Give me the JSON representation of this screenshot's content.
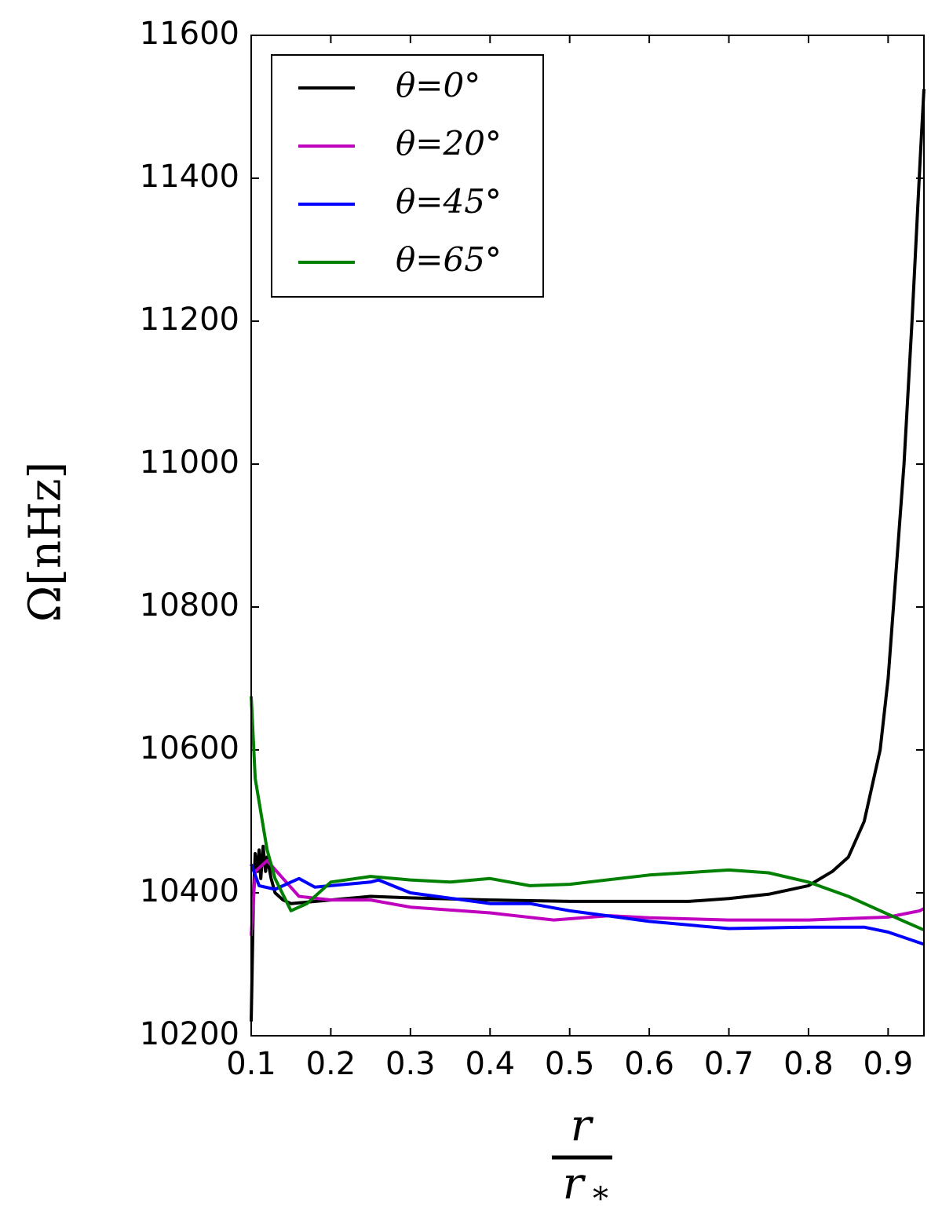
{
  "chart_data": {
    "type": "line",
    "ylabel": "Ω[nHz]",
    "xlabel_numerator": "r",
    "xlabel_denominator": "r",
    "xlabel_denominator_subscript": "*",
    "xlim": [
      0.1,
      0.945
    ],
    "ylim": [
      10200,
      11600
    ],
    "xticks": [
      0.1,
      0.2,
      0.3,
      0.4,
      0.5,
      0.6,
      0.7,
      0.8,
      0.9
    ],
    "yticks": [
      10200,
      10400,
      10600,
      10800,
      11000,
      11200,
      11400,
      11600
    ],
    "grid": false,
    "legend": "upper left",
    "series": [
      {
        "name": "θ=0°",
        "color": "#000000",
        "x": [
          0.1,
          0.103,
          0.105,
          0.108,
          0.11,
          0.112,
          0.115,
          0.118,
          0.12,
          0.125,
          0.13,
          0.14,
          0.15,
          0.2,
          0.25,
          0.3,
          0.4,
          0.5,
          0.65,
          0.7,
          0.75,
          0.8,
          0.83,
          0.85,
          0.87,
          0.89,
          0.9,
          0.91,
          0.92,
          0.93,
          0.94,
          0.945
        ],
        "values": [
          10220,
          10400,
          10455,
          10430,
          10460,
          10420,
          10465,
          10430,
          10450,
          10420,
          10400,
          10390,
          10385,
          10390,
          10395,
          10393,
          10390,
          10388,
          10388,
          10392,
          10398,
          10410,
          10430,
          10450,
          10500,
          10600,
          10700,
          10850,
          11000,
          11200,
          11420,
          11525
        ]
      },
      {
        "name": "θ=20°",
        "color": "#bf00bf",
        "x": [
          0.1,
          0.105,
          0.12,
          0.14,
          0.16,
          0.2,
          0.25,
          0.3,
          0.4,
          0.48,
          0.55,
          0.6,
          0.7,
          0.8,
          0.9,
          0.94,
          0.945
        ],
        "values": [
          10340,
          10430,
          10445,
          10420,
          10395,
          10390,
          10390,
          10380,
          10372,
          10362,
          10368,
          10365,
          10362,
          10362,
          10366,
          10375,
          10378
        ]
      },
      {
        "name": "θ=45°",
        "color": "#0000ff",
        "x": [
          0.1,
          0.11,
          0.13,
          0.15,
          0.16,
          0.18,
          0.2,
          0.25,
          0.26,
          0.3,
          0.4,
          0.45,
          0.5,
          0.6,
          0.7,
          0.8,
          0.87,
          0.9,
          0.945
        ],
        "values": [
          10440,
          10410,
          10405,
          10415,
          10420,
          10408,
          10410,
          10415,
          10418,
          10400,
          10385,
          10385,
          10375,
          10360,
          10350,
          10352,
          10352,
          10345,
          10328
        ]
      },
      {
        "name": "θ=65°",
        "color": "#008000",
        "x": [
          0.1,
          0.105,
          0.12,
          0.13,
          0.15,
          0.17,
          0.2,
          0.25,
          0.3,
          0.35,
          0.4,
          0.45,
          0.5,
          0.6,
          0.7,
          0.75,
          0.8,
          0.85,
          0.9,
          0.945
        ],
        "values": [
          10675,
          10560,
          10460,
          10420,
          10375,
          10385,
          10415,
          10423,
          10418,
          10415,
          10420,
          10410,
          10412,
          10425,
          10432,
          10428,
          10415,
          10395,
          10370,
          10348
        ]
      }
    ]
  }
}
